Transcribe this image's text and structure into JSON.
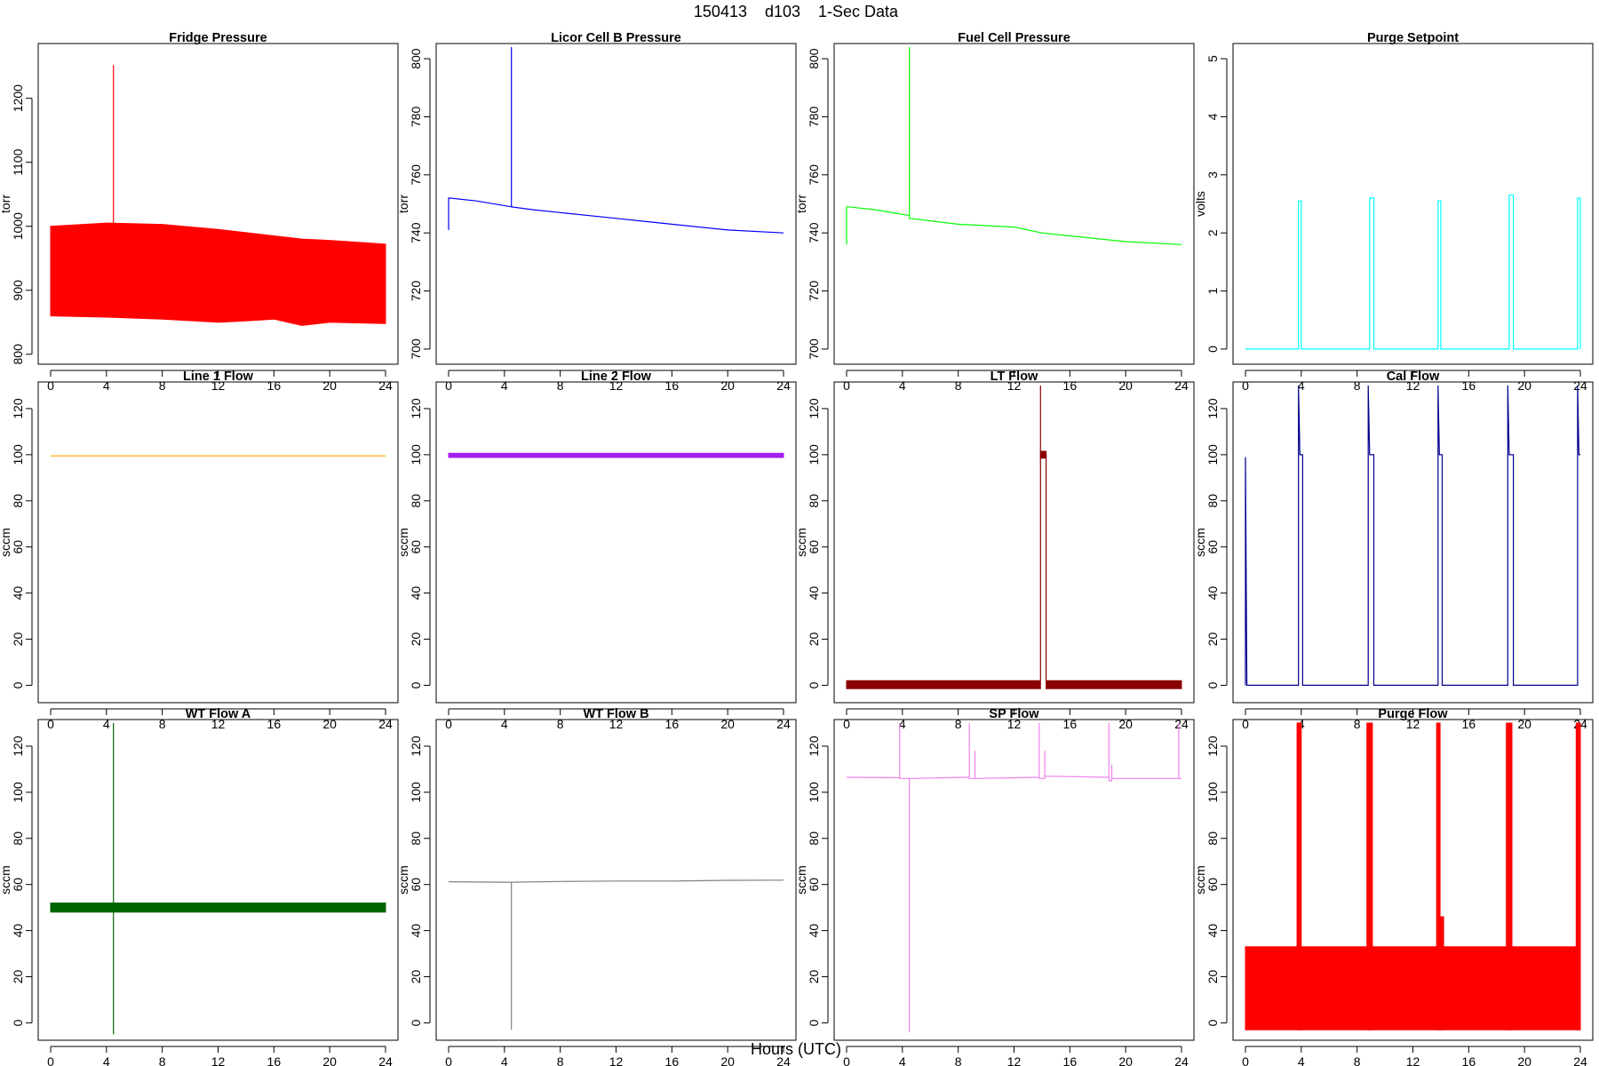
{
  "figure": {
    "title": "150413    d103    1-Sec Data",
    "xlabel": "Hours (UTC)"
  },
  "chart_data": [
    {
      "type": "line",
      "title": "Fridge Pressure",
      "ylabel": "torr",
      "color": "#ff0000",
      "xlim": [
        0,
        24
      ],
      "ylim": [
        790,
        1280
      ],
      "xticks": [
        0,
        4,
        8,
        12,
        16,
        20,
        24
      ],
      "yticks": [
        800,
        900,
        1000,
        1100,
        1200
      ],
      "series": [
        {
          "style": "band",
          "x": [
            0,
            4,
            8,
            12,
            14,
            16,
            18,
            20,
            24
          ],
          "low": [
            860,
            858,
            855,
            850,
            852,
            855,
            845,
            850,
            848
          ],
          "high": [
            1000,
            1005,
            1003,
            995,
            990,
            985,
            980,
            978,
            972
          ]
        },
        {
          "style": "line",
          "x": [
            4.5,
            4.5
          ],
          "y": [
            1000,
            1252
          ]
        }
      ]
    },
    {
      "type": "line",
      "title": "Licor Cell B Pressure",
      "ylabel": "torr",
      "color": "#0000ff",
      "xlim": [
        0,
        24
      ],
      "ylim": [
        696,
        804
      ],
      "xticks": [
        0,
        4,
        8,
        12,
        16,
        20,
        24
      ],
      "yticks": [
        700,
        720,
        740,
        760,
        780,
        800
      ],
      "series": [
        {
          "style": "line",
          "x": [
            0,
            0,
            0.1,
            2,
            4.5,
            4.5,
            4.5,
            6,
            8,
            12,
            14,
            16,
            20,
            24
          ],
          "y": [
            741,
            752,
            752,
            751,
            749,
            804,
            749,
            748,
            747,
            745,
            744,
            743,
            741,
            740
          ]
        }
      ]
    },
    {
      "type": "line",
      "title": "Fuel Cell Pressure",
      "ylabel": "torr",
      "color": "#00ff00",
      "xlim": [
        0,
        24
      ],
      "ylim": [
        696,
        804
      ],
      "xticks": [
        0,
        4,
        8,
        12,
        16,
        20,
        24
      ],
      "yticks": [
        700,
        720,
        740,
        760,
        780,
        800
      ],
      "series": [
        {
          "style": "line",
          "x": [
            0,
            0,
            0.1,
            2,
            4.5,
            4.5,
            4.5,
            8,
            12,
            14,
            16,
            20,
            24
          ],
          "y": [
            736,
            749,
            749,
            748,
            746,
            804,
            745,
            743,
            742,
            740,
            739,
            737,
            736
          ]
        }
      ]
    },
    {
      "type": "line",
      "title": "Purge Setpoint",
      "ylabel": "volts",
      "color": "#00ffff",
      "xlim": [
        0,
        24
      ],
      "ylim": [
        -0.2,
        5.2
      ],
      "xticks": [
        0,
        4,
        8,
        12,
        16,
        20,
        24
      ],
      "yticks": [
        0,
        1,
        2,
        3,
        4,
        5
      ],
      "series": [
        {
          "style": "line",
          "x": [
            0,
            3.8,
            3.8,
            4.0,
            4.0,
            8.9,
            8.9,
            9.2,
            9.2,
            13.8,
            13.8,
            14.0,
            14.0,
            18.9,
            18.9,
            19.2,
            19.2,
            23.8,
            23.8,
            24.0,
            24.0
          ],
          "y": [
            0,
            0,
            2.55,
            2.55,
            0,
            0,
            2.6,
            2.6,
            0,
            0,
            2.55,
            2.55,
            0,
            0,
            2.65,
            2.65,
            0,
            0,
            2.6,
            2.6,
            0
          ]
        }
      ]
    },
    {
      "type": "line",
      "title": "Line 1 Flow",
      "ylabel": "sccm",
      "color": "#ffa500",
      "xlim": [
        0,
        24
      ],
      "ylim": [
        -6,
        130
      ],
      "xticks": [
        0,
        4,
        8,
        12,
        16,
        20,
        24
      ],
      "yticks": [
        0,
        20,
        40,
        60,
        80,
        100,
        120
      ],
      "series": [
        {
          "style": "line",
          "x": [
            0,
            24
          ],
          "y": [
            99.5,
            99.5
          ]
        }
      ]
    },
    {
      "type": "line",
      "title": "Line 2 Flow",
      "ylabel": "sccm",
      "color": "#a020f0",
      "xlim": [
        0,
        24
      ],
      "ylim": [
        -6,
        130
      ],
      "xticks": [
        0,
        4,
        8,
        12,
        16,
        20,
        24
      ],
      "yticks": [
        0,
        20,
        40,
        60,
        80,
        100,
        120
      ],
      "series": [
        {
          "style": "band",
          "x": [
            0,
            24
          ],
          "low": [
            98.8,
            98.8
          ],
          "high": [
            100.6,
            100.6
          ]
        }
      ]
    },
    {
      "type": "line",
      "title": "LT Flow",
      "ylabel": "sccm",
      "color": "#8b0000",
      "xlim": [
        0,
        24
      ],
      "ylim": [
        -6,
        130
      ],
      "xticks": [
        0,
        4,
        8,
        12,
        16,
        20,
        24
      ],
      "yticks": [
        0,
        20,
        40,
        60,
        80,
        100,
        120
      ],
      "series": [
        {
          "style": "band",
          "x": [
            0,
            13.9
          ],
          "low": [
            -1.5,
            -1.5
          ],
          "high": [
            2,
            2
          ]
        },
        {
          "style": "band",
          "x": [
            14.3,
            24
          ],
          "low": [
            -1.5,
            -1.5
          ],
          "high": [
            2,
            2
          ]
        },
        {
          "style": "band",
          "x": [
            13.9,
            14.3
          ],
          "low": [
            98.5,
            98.5
          ],
          "high": [
            101.5,
            101.5
          ]
        },
        {
          "style": "line",
          "x": [
            13.9,
            13.9,
            13.9,
            14.0,
            14.3,
            14.3
          ],
          "y": [
            2,
            130,
            101,
            100,
            100,
            2
          ]
        }
      ]
    },
    {
      "type": "line",
      "title": "Cal Flow",
      "ylabel": "sccm",
      "color": "#00008b",
      "xlim": [
        0,
        24
      ],
      "ylim": [
        -6,
        130
      ],
      "xticks": [
        0,
        4,
        8,
        12,
        16,
        20,
        24
      ],
      "yticks": [
        0,
        20,
        40,
        60,
        80,
        100,
        120
      ],
      "series": [
        {
          "style": "line",
          "x": [
            0,
            0,
            0.1,
            3.8,
            3.8,
            3.9,
            4.1,
            4.1,
            8.8,
            8.8,
            8.9,
            9.2,
            9.2,
            13.8,
            13.8,
            13.9,
            14.1,
            14.1,
            18.8,
            18.8,
            18.9,
            19.2,
            19.2,
            23.8,
            23.8,
            23.9,
            24
          ],
          "y": [
            0,
            99,
            0,
            0,
            130,
            100,
            100,
            0,
            0,
            130,
            100,
            100,
            0,
            0,
            130,
            100,
            100,
            0,
            0,
            130,
            100,
            100,
            0,
            0,
            130,
            100,
            100
          ]
        }
      ]
    },
    {
      "type": "line",
      "title": "WT Flow A",
      "ylabel": "sccm",
      "color": "#006400",
      "xlim": [
        0,
        24
      ],
      "ylim": [
        -6,
        130
      ],
      "xticks": [
        0,
        4,
        8,
        12,
        16,
        20,
        24
      ],
      "yticks": [
        0,
        20,
        40,
        60,
        80,
        100,
        120
      ],
      "series": [
        {
          "style": "band",
          "x": [
            0,
            24
          ],
          "low": [
            48,
            48
          ],
          "high": [
            52,
            52
          ]
        },
        {
          "style": "line",
          "x": [
            4.5,
            4.5
          ],
          "y": [
            -5,
            130
          ]
        }
      ]
    },
    {
      "type": "line",
      "title": "WT Flow B",
      "ylabel": "sccm",
      "color": "#808080",
      "xlim": [
        0,
        24
      ],
      "ylim": [
        -6,
        130
      ],
      "xticks": [
        0,
        4,
        8,
        12,
        16,
        20,
        24
      ],
      "yticks": [
        0,
        20,
        40,
        60,
        80,
        100,
        120
      ],
      "series": [
        {
          "style": "line",
          "x": [
            0,
            4,
            4.5,
            4.5,
            4.5,
            8,
            12,
            16,
            20,
            24
          ],
          "y": [
            61.2,
            61,
            61,
            -3,
            61,
            61.3,
            61.5,
            61.5,
            61.8,
            61.9
          ]
        }
      ]
    },
    {
      "type": "line",
      "title": "SP Flow",
      "ylabel": "sccm",
      "color": "#ee82ee",
      "xlim": [
        0,
        24
      ],
      "ylim": [
        -6,
        130
      ],
      "xticks": [
        0,
        4,
        8,
        12,
        16,
        20,
        24
      ],
      "yticks": [
        0,
        20,
        40,
        60,
        80,
        100,
        120
      ],
      "series": [
        {
          "style": "line",
          "x": [
            0,
            3.8,
            3.8,
            3.8,
            4.5,
            4.5,
            4.5,
            8.8,
            8.8,
            8.8,
            9.2,
            9.2,
            9.2,
            13.8,
            13.8,
            13.8,
            14.2,
            14.2,
            14.2,
            18.8,
            18.8,
            18.8,
            19,
            19,
            19,
            23.8,
            23.8,
            23.8,
            24
          ],
          "y": [
            106.5,
            106.3,
            130,
            106,
            106,
            -4,
            106,
            106.5,
            130,
            106,
            106,
            118,
            106,
            106.5,
            130,
            106,
            106,
            118,
            107,
            106.5,
            130,
            105,
            105,
            112,
            106,
            106,
            130,
            106,
            106
          ]
        }
      ]
    },
    {
      "type": "line",
      "title": "Purge Flow",
      "ylabel": "sccm",
      "color": "#ff0000",
      "xlim": [
        0,
        24
      ],
      "ylim": [
        -6,
        130
      ],
      "xticks": [
        0,
        4,
        8,
        12,
        16,
        20,
        24
      ],
      "yticks": [
        0,
        20,
        40,
        60,
        80,
        100,
        120
      ],
      "series": [
        {
          "style": "band",
          "x": [
            0,
            24
          ],
          "low": [
            -3,
            -3
          ],
          "high": [
            33,
            33
          ]
        },
        {
          "style": "band",
          "x": [
            3.7,
            4.0
          ],
          "low": [
            -3,
            -3
          ],
          "high": [
            130,
            130
          ]
        },
        {
          "style": "band",
          "x": [
            8.7,
            9.1
          ],
          "low": [
            -3,
            -3
          ],
          "high": [
            130,
            130
          ]
        },
        {
          "style": "band",
          "x": [
            13.7,
            13.95
          ],
          "low": [
            -3,
            -3
          ],
          "high": [
            130,
            130
          ]
        },
        {
          "style": "band",
          "x": [
            13.95,
            14.2
          ],
          "low": [
            -3,
            -3
          ],
          "high": [
            46,
            46
          ]
        },
        {
          "style": "band",
          "x": [
            18.7,
            19.1
          ],
          "low": [
            -3,
            -3
          ],
          "high": [
            130,
            130
          ]
        },
        {
          "style": "band",
          "x": [
            23.7,
            24.0
          ],
          "low": [
            -3,
            -3
          ],
          "high": [
            130,
            130
          ]
        }
      ]
    }
  ]
}
